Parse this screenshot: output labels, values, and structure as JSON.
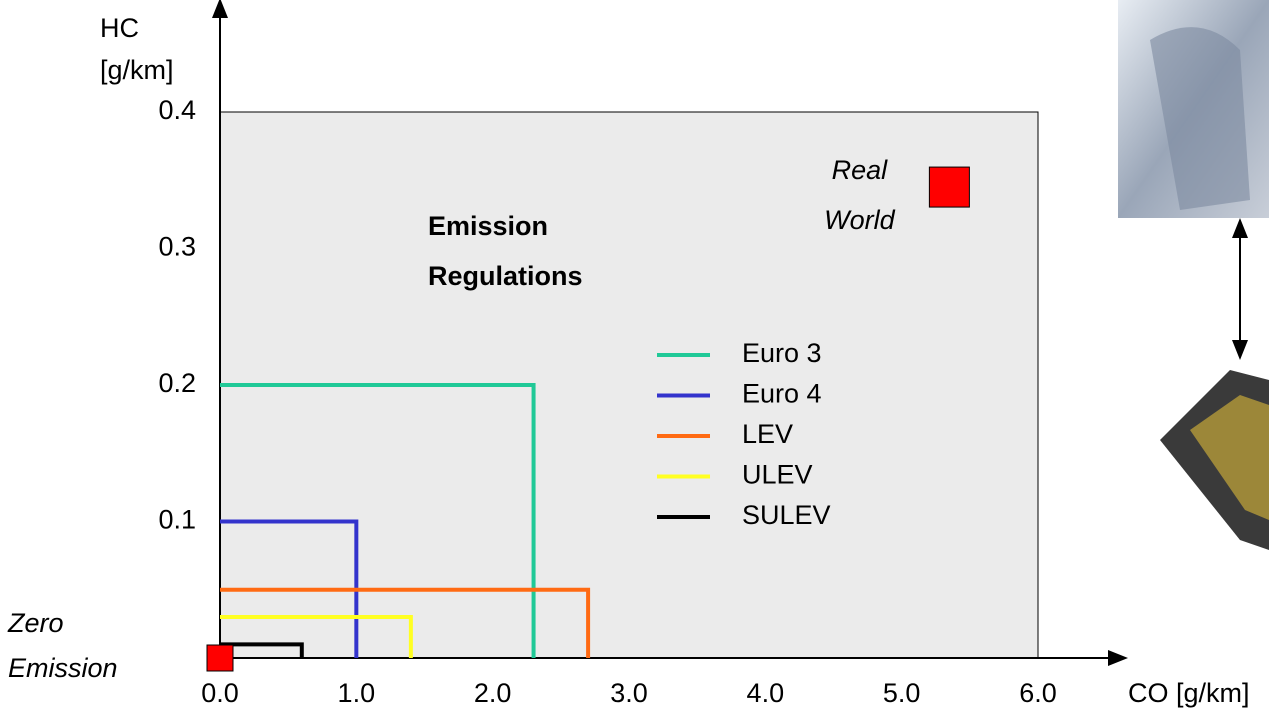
{
  "chart_data": {
    "type": "line",
    "xlabel": "CO [g/km]",
    "ylabel_lines": [
      "HC",
      "[g/km]"
    ],
    "xlim": [
      0,
      6
    ],
    "ylim": [
      0,
      0.4
    ],
    "xticks": [
      {
        "value": 0,
        "label": "0.0"
      },
      {
        "value": 1,
        "label": "1.0"
      },
      {
        "value": 2,
        "label": "2.0"
      },
      {
        "value": 3,
        "label": "3.0"
      },
      {
        "value": 4,
        "label": "4.0"
      },
      {
        "value": 5,
        "label": "5.0"
      },
      {
        "value": 6,
        "label": "6.0"
      }
    ],
    "yticks": [
      0.1,
      0.2,
      0.3,
      0.4
    ],
    "background": "#ebebeb",
    "annotation_lines": [
      "Emission",
      "Regulations"
    ],
    "series": [
      {
        "name": "Euro 3",
        "color": "#20c997",
        "x": [
          2.3
        ],
        "values": [
          0.2
        ]
      },
      {
        "name": "Euro 4",
        "color": "#3333cc",
        "x": [
          1.0
        ],
        "values": [
          0.1
        ]
      },
      {
        "name": "LEV",
        "color": "#ff6a13",
        "x": [
          2.7
        ],
        "values": [
          0.05
        ]
      },
      {
        "name": "ULEV",
        "color": "#ffff22",
        "x": [
          1.4
        ],
        "values": [
          0.03
        ]
      },
      {
        "name": "SULEV",
        "color": "#000000",
        "x": [
          0.6
        ],
        "values": [
          0.01
        ]
      }
    ],
    "points": [
      {
        "label_lines": [
          "Real",
          "World"
        ],
        "x": 5.35,
        "y": 0.345,
        "color": "#ff0000"
      },
      {
        "label_lines": [
          "Zero",
          "Emission"
        ],
        "x": 0,
        "y": 0,
        "color": "#ff0000"
      }
    ]
  }
}
